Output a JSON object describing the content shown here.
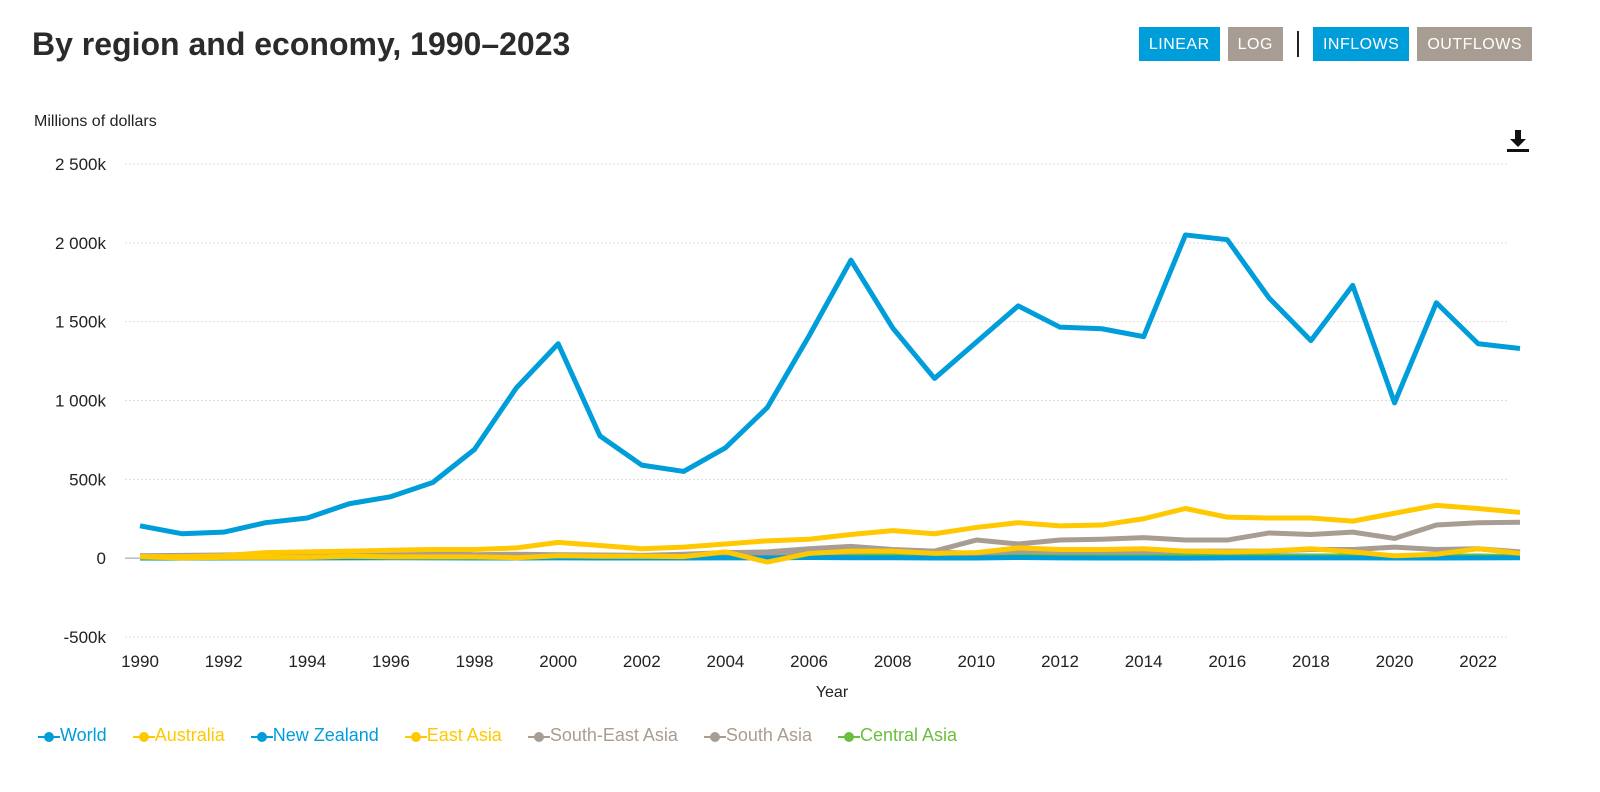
{
  "header": {
    "title": "By region and economy, 1990–2023"
  },
  "controls": [
    {
      "label": "LINEAR",
      "active": true,
      "color": "#009ddb"
    },
    {
      "label": "LOG",
      "active": false,
      "color": "#a89d92"
    },
    {
      "label": "INFLOWS",
      "active": true,
      "color": "#009ddb"
    },
    {
      "label": "OUTFLOWS",
      "active": false,
      "color": "#a89d92"
    }
  ],
  "download_icon": "download-icon",
  "chart_data": {
    "type": "line",
    "title": "By region and economy, 1990–2023",
    "xlabel": "Year",
    "ylabel": "Millions of dollars",
    "ylim": [
      -500000,
      2500000
    ],
    "xlim": [
      1990,
      2023
    ],
    "yticks": [
      {
        "v": -500000,
        "label": "-500k"
      },
      {
        "v": 0,
        "label": "0"
      },
      {
        "v": 500000,
        "label": "500k"
      },
      {
        "v": 1000000,
        "label": "1 000k"
      },
      {
        "v": 1500000,
        "label": "1 500k"
      },
      {
        "v": 2000000,
        "label": "2 000k"
      },
      {
        "v": 2500000,
        "label": "2 500k"
      }
    ],
    "xticks": [
      1990,
      1992,
      1994,
      1996,
      1998,
      2000,
      2002,
      2004,
      2006,
      2008,
      2010,
      2012,
      2014,
      2016,
      2018,
      2020,
      2022
    ],
    "grid": true,
    "legend": "bottom",
    "x": [
      1990,
      1991,
      1992,
      1993,
      1994,
      1995,
      1996,
      1997,
      1998,
      1999,
      2000,
      2001,
      2002,
      2003,
      2004,
      2005,
      2006,
      2007,
      2008,
      2009,
      2010,
      2011,
      2012,
      2013,
      2014,
      2015,
      2016,
      2017,
      2018,
      2019,
      2020,
      2021,
      2022,
      2023
    ],
    "series": [
      {
        "name": "World",
        "color": "#009ddb",
        "values": [
          205000,
          155000,
          165000,
          225000,
          255000,
          345000,
          390000,
          480000,
          690000,
          1080000,
          1360000,
          775000,
          590000,
          550000,
          700000,
          955000,
          1410000,
          1890000,
          1460000,
          1140000,
          1370000,
          1600000,
          1465000,
          1455000,
          1405000,
          2050000,
          2020000,
          1650000,
          1380000,
          1730000,
          985000,
          1620000,
          1360000,
          1330000
        ]
      },
      {
        "name": "Australia",
        "color": "#ffc800",
        "values": [
          8000,
          2000,
          5000,
          5000,
          5000,
          12000,
          8000,
          8000,
          8000,
          3000,
          15000,
          12000,
          12000,
          10000,
          40000,
          -25000,
          30000,
          45000,
          45000,
          30000,
          35000,
          65000,
          55000,
          55000,
          60000,
          45000,
          40000,
          45000,
          60000,
          40000,
          15000,
          25000,
          60000,
          30000
        ]
      },
      {
        "name": "New Zealand",
        "color": "#009ddb",
        "values": [
          2000,
          1000,
          2000,
          2000,
          2000,
          3000,
          3000,
          2000,
          1000,
          1000,
          2000,
          1000,
          1000,
          1000,
          2000,
          2000,
          4000,
          3000,
          3000,
          1000,
          1000,
          4000,
          2000,
          1000,
          1000,
          0,
          2000,
          2000,
          2000,
          2000,
          1000,
          1000,
          2000,
          3000
        ]
      },
      {
        "name": "East Asia",
        "color": "#ffc800",
        "values": [
          10000,
          10000,
          15000,
          35000,
          40000,
          45000,
          50000,
          55000,
          55000,
          65000,
          100000,
          80000,
          60000,
          70000,
          90000,
          110000,
          120000,
          150000,
          175000,
          155000,
          195000,
          225000,
          205000,
          210000,
          250000,
          315000,
          260000,
          255000,
          255000,
          235000,
          285000,
          335000,
          315000,
          290000
        ]
      },
      {
        "name": "South-East Asia",
        "color": "#a89d92",
        "values": [
          15000,
          18000,
          20000,
          25000,
          25000,
          28000,
          32000,
          35000,
          22000,
          25000,
          22000,
          20000,
          18000,
          25000,
          35000,
          40000,
          60000,
          75000,
          55000,
          45000,
          115000,
          90000,
          115000,
          120000,
          130000,
          115000,
          115000,
          160000,
          150000,
          165000,
          125000,
          210000,
          225000,
          228000
        ]
      },
      {
        "name": "South Asia",
        "color": "#a89d92",
        "values": [
          2000,
          3000,
          4000,
          4000,
          5000,
          6000,
          6000,
          7000,
          6000,
          5000,
          6000,
          8000,
          8000,
          8000,
          10000,
          15000,
          30000,
          40000,
          50000,
          40000,
          30000,
          45000,
          40000,
          40000,
          40000,
          45000,
          45000,
          45000,
          55000,
          55000,
          70000,
          55000,
          60000,
          40000
        ]
      },
      {
        "name": "Central Asia",
        "color": "#6bbf3f",
        "values": [
          0,
          0,
          1000,
          2000,
          2000,
          3000,
          4000,
          4000,
          4000,
          3000,
          4000,
          5000,
          6000,
          6000,
          8000,
          8000,
          10000,
          12000,
          18000,
          16000,
          15000,
          18000,
          20000,
          18000,
          20000,
          18000,
          15000,
          15000,
          14000,
          14000,
          10000,
          12000,
          14000,
          10000
        ]
      }
    ]
  }
}
